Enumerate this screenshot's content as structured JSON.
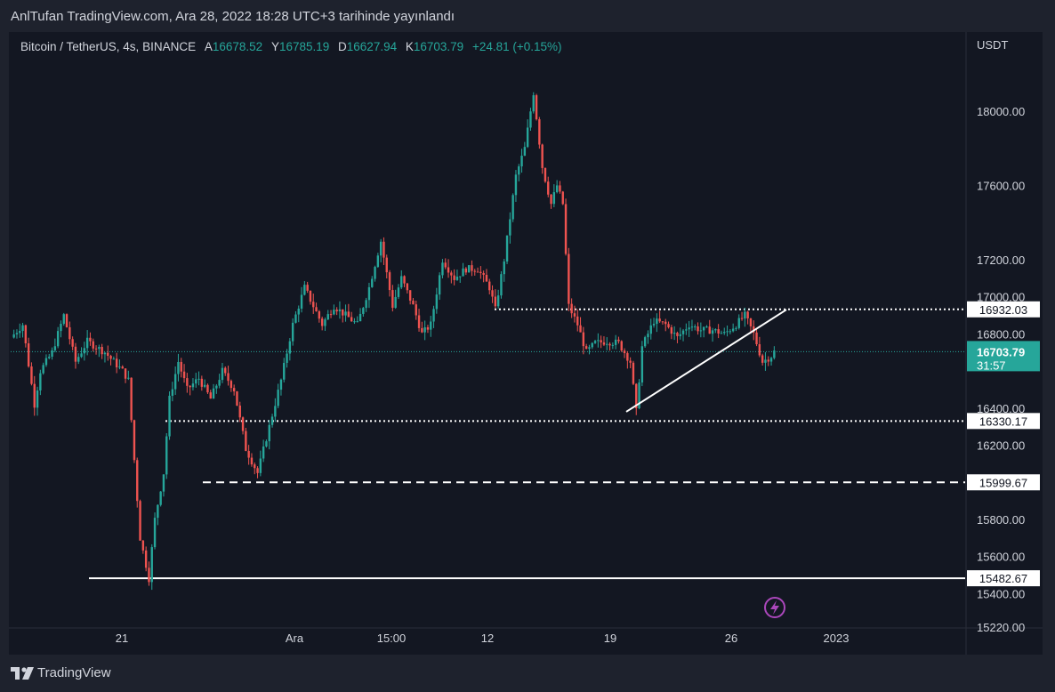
{
  "header": {
    "published_text": "AnlTufan TradingView.com, Ara 28, 2022 18:28 UTC+3 tarihinde yayınlandı"
  },
  "legend": {
    "symbol": "Bitcoin / TetherUS, 4s, BINANCE",
    "open_label": "A",
    "open": "16678.52",
    "high_label": "Y",
    "high": "16785.19",
    "low_label": "D",
    "low": "16627.94",
    "close_label": "K",
    "close": "16703.79",
    "change": "+24.81 (+0.15%)"
  },
  "footer": {
    "brand": "TradingView"
  },
  "colors": {
    "background": "#131722",
    "frame": "#1e222d",
    "up": "#26a69a",
    "down": "#ef5350",
    "text": "#d1d4dc",
    "line": "#ffffff"
  },
  "chart_data": {
    "type": "candlestick",
    "symbol": "Bitcoin / TetherUS",
    "interval": "4s",
    "exchange": "BINANCE",
    "currency_label": "USDT",
    "x_ticks": [
      "21",
      "Ara",
      "15:00",
      "12",
      "19",
      "26",
      "2023"
    ],
    "y_ticks": [
      "18000.00",
      "17600.00",
      "17200.00",
      "17000.00",
      "16800.00",
      "16400.00",
      "16200.00",
      "15800.00",
      "15600.00",
      "15400.00",
      "15220.00"
    ],
    "price_label": {
      "price": "16703.79",
      "countdown": "31:57"
    },
    "horizontal_levels": [
      {
        "value": "16932.03",
        "style": "dotted"
      },
      {
        "value": "16330.17",
        "style": "dotted"
      },
      {
        "value": "15999.67",
        "style": "dashed"
      },
      {
        "value": "15482.67",
        "style": "solid"
      }
    ],
    "trendline": {
      "from_price": 16380,
      "to_price": 16930,
      "style": "solid"
    },
    "price_path": [
      [
        0,
        16780
      ],
      [
        4,
        16850
      ],
      [
        8,
        16420
      ],
      [
        10,
        16600
      ],
      [
        14,
        16700
      ],
      [
        18,
        16900
      ],
      [
        22,
        16650
      ],
      [
        26,
        16760
      ],
      [
        32,
        16700
      ],
      [
        38,
        16600
      ],
      [
        40,
        16550
      ],
      [
        42,
        16120
      ],
      [
        44,
        15700
      ],
      [
        47,
        15482
      ],
      [
        49,
        15800
      ],
      [
        52,
        16050
      ],
      [
        54,
        16450
      ],
      [
        57,
        16650
      ],
      [
        60,
        16500
      ],
      [
        64,
        16560
      ],
      [
        68,
        16450
      ],
      [
        72,
        16600
      ],
      [
        76,
        16500
      ],
      [
        80,
        16180
      ],
      [
        84,
        16050
      ],
      [
        88,
        16300
      ],
      [
        92,
        16550
      ],
      [
        96,
        16850
      ],
      [
        100,
        17050
      ],
      [
        103,
        16950
      ],
      [
        106,
        16850
      ],
      [
        110,
        16950
      ],
      [
        114,
        16900
      ],
      [
        118,
        16850
      ],
      [
        122,
        17050
      ],
      [
        126,
        17300
      ],
      [
        130,
        16950
      ],
      [
        133,
        17100
      ],
      [
        137,
        16950
      ],
      [
        140,
        16800
      ],
      [
        143,
        16850
      ],
      [
        147,
        17200
      ],
      [
        151,
        17100
      ],
      [
        155,
        17150
      ],
      [
        159,
        17150
      ],
      [
        163,
        17050
      ],
      [
        165,
        16930
      ],
      [
        168,
        17200
      ],
      [
        172,
        17650
      ],
      [
        175,
        17800
      ],
      [
        178,
        18100
      ],
      [
        181,
        17700
      ],
      [
        184,
        17500
      ],
      [
        186,
        17600
      ],
      [
        188,
        17500
      ],
      [
        190,
        16950
      ],
      [
        193,
        16850
      ],
      [
        196,
        16700
      ],
      [
        199,
        16750
      ],
      [
        203,
        16760
      ],
      [
        207,
        16750
      ],
      [
        211,
        16650
      ],
      [
        213,
        16380
      ],
      [
        215,
        16730
      ],
      [
        219,
        16870
      ],
      [
        223,
        16850
      ],
      [
        227,
        16780
      ],
      [
        231,
        16850
      ],
      [
        235,
        16820
      ],
      [
        239,
        16820
      ],
      [
        243,
        16800
      ],
      [
        247,
        16850
      ],
      [
        250,
        16900
      ],
      [
        253,
        16800
      ],
      [
        256,
        16650
      ],
      [
        259,
        16680
      ],
      [
        260,
        16704
      ]
    ]
  }
}
